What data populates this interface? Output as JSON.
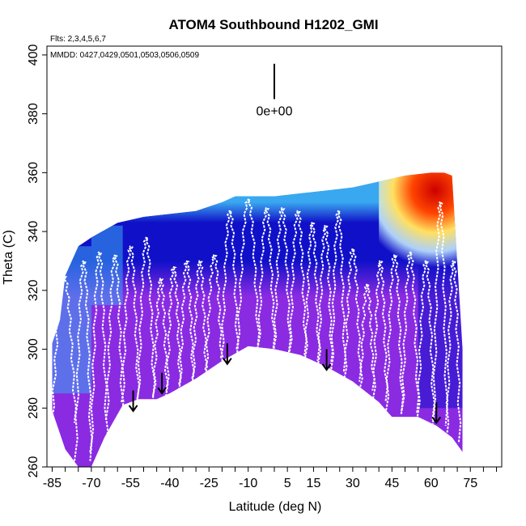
{
  "chart_data": {
    "type": "heatmap",
    "title": "ATOM4 Southbound H1202_GMI",
    "flights_label": "Flts: 2,3,4,5,6,7",
    "dates_label": "MMDD: 0427,0429,0501,0503,0506,0509",
    "xlabel": "Latitude (deg N)",
    "ylabel": "Theta (C)",
    "xlim": [
      -87,
      87
    ],
    "ylim": [
      260,
      403
    ],
    "xticks": [
      -85,
      -70,
      -55,
      -40,
      -25,
      -10,
      5,
      15,
      30,
      45,
      60,
      75
    ],
    "xtick_labels": [
      "-85",
      "-70",
      "-55",
      "-40",
      "-25",
      "-10",
      "5",
      "15",
      "30",
      "45",
      "60",
      "75"
    ],
    "xminor_step": 5,
    "yticks": [
      260,
      280,
      300,
      320,
      340,
      360,
      380,
      400
    ],
    "ytick_labels": [
      "260",
      "280",
      "300",
      "320",
      "340",
      "360",
      "380",
      "400"
    ],
    "scale_bar_label": "0e+00",
    "scale_bar_lat": 0,
    "scale_bar_theta": [
      385,
      397
    ],
    "colors": {
      "low": "#8a2be2",
      "mid_low": "#1010c8",
      "mid": "#3aa8f0",
      "mid_high": "#ffe060",
      "high": "#cc0000",
      "profile": "#ffffff"
    },
    "field": {
      "floor": [
        [
          -85,
          279
        ],
        [
          -80,
          266
        ],
        [
          -75,
          260
        ],
        [
          -70,
          260
        ],
        [
          -65,
          270
        ],
        [
          -58,
          281
        ],
        [
          -52,
          283
        ],
        [
          -45,
          283
        ],
        [
          -40,
          285
        ],
        [
          -30,
          290
        ],
        [
          -20,
          296
        ],
        [
          -10,
          301
        ],
        [
          0,
          300
        ],
        [
          10,
          298
        ],
        [
          20,
          294
        ],
        [
          30,
          289
        ],
        [
          40,
          282
        ],
        [
          45,
          277
        ],
        [
          50,
          277
        ],
        [
          55,
          277
        ],
        [
          62,
          274
        ],
        [
          68,
          270
        ],
        [
          72,
          265
        ]
      ],
      "top": [
        [
          -85,
          302
        ],
        [
          -82,
          310
        ],
        [
          -80,
          325
        ],
        [
          -75,
          335
        ],
        [
          -70,
          338
        ],
        [
          -60,
          343
        ],
        [
          -50,
          345
        ],
        [
          -40,
          346
        ],
        [
          -30,
          347
        ],
        [
          -20,
          350
        ],
        [
          -15,
          352
        ],
        [
          -10,
          352
        ],
        [
          0,
          352
        ],
        [
          10,
          353
        ],
        [
          20,
          354
        ],
        [
          30,
          355
        ],
        [
          40,
          357
        ],
        [
          50,
          359
        ],
        [
          60,
          360
        ],
        [
          65,
          360
        ],
        [
          68,
          359
        ],
        [
          72,
          300
        ]
      ],
      "gradient_stops": [
        {
          "theta": 275,
          "color": "low"
        },
        {
          "theta": 318,
          "color": "low"
        },
        {
          "theta": 330,
          "color": "mid_low"
        },
        {
          "theta": 343,
          "color": "mid_low"
        },
        {
          "theta": 350,
          "color": "mid"
        }
      ],
      "blue_patches": [
        {
          "lat": [
            -87,
            -70
          ],
          "theta": [
            285,
            335
          ],
          "color": "mid"
        },
        {
          "lat": [
            -70,
            -58
          ],
          "theta": [
            315,
            342
          ],
          "color": "mid"
        },
        {
          "lat": [
            55,
            72
          ],
          "theta": [
            280,
            330
          ],
          "color": "mid_low"
        }
      ],
      "hot_region": {
        "lat": [
          40,
          71
        ],
        "theta": [
          328,
          362
        ]
      }
    },
    "profiles": [
      {
        "lat_start": -85,
        "lat_end": -76,
        "theta_min": 275,
        "theta_max": 325
      },
      {
        "lat_start": -76,
        "lat_end": -70,
        "theta_min": 262,
        "theta_max": 330
      },
      {
        "lat_start": -70,
        "lat_end": -64,
        "theta_min": 265,
        "theta_max": 333
      },
      {
        "lat_start": -64,
        "lat_end": -58,
        "theta_min": 276,
        "theta_max": 332
      },
      {
        "lat_start": -58,
        "lat_end": -52,
        "theta_min": 282,
        "theta_max": 335
      },
      {
        "lat_start": -52,
        "lat_end": -46,
        "theta_min": 283,
        "theta_max": 338
      },
      {
        "lat_start": -46,
        "lat_end": -41,
        "theta_min": 284,
        "theta_max": 324
      },
      {
        "lat_start": -41,
        "lat_end": -36,
        "theta_min": 286,
        "theta_max": 328
      },
      {
        "lat_start": -36,
        "lat_end": -31,
        "theta_min": 288,
        "theta_max": 330
      },
      {
        "lat_start": -31,
        "lat_end": -26,
        "theta_min": 290,
        "theta_max": 330
      },
      {
        "lat_start": -26,
        "lat_end": -20,
        "theta_min": 293,
        "theta_max": 332
      },
      {
        "lat_start": -20,
        "lat_end": -14,
        "theta_min": 297,
        "theta_max": 347
      },
      {
        "lat_start": -14,
        "lat_end": -6,
        "theta_min": 300,
        "theta_max": 351
      },
      {
        "lat_start": -6,
        "lat_end": 0,
        "theta_min": 300,
        "theta_max": 348
      },
      {
        "lat_start": 0,
        "lat_end": 6,
        "theta_min": 299,
        "theta_max": 348
      },
      {
        "lat_start": 6,
        "lat_end": 12,
        "theta_min": 298,
        "theta_max": 347
      },
      {
        "lat_start": 12,
        "lat_end": 17,
        "theta_min": 296,
        "theta_max": 343
      },
      {
        "lat_start": 17,
        "lat_end": 22,
        "theta_min": 294,
        "theta_max": 342
      },
      {
        "lat_start": 22,
        "lat_end": 27,
        "theta_min": 292,
        "theta_max": 347
      },
      {
        "lat_start": 27,
        "lat_end": 33,
        "theta_min": 289,
        "theta_max": 334
      },
      {
        "lat_start": 33,
        "lat_end": 38,
        "theta_min": 286,
        "theta_max": 322
      },
      {
        "lat_start": 38,
        "lat_end": 43,
        "theta_min": 282,
        "theta_max": 330
      },
      {
        "lat_start": 43,
        "lat_end": 49,
        "theta_min": 278,
        "theta_max": 332
      },
      {
        "lat_start": 49,
        "lat_end": 55,
        "theta_min": 278,
        "theta_max": 333
      },
      {
        "lat_start": 55,
        "lat_end": 61,
        "theta_min": 276,
        "theta_max": 330
      },
      {
        "lat_start": 61,
        "lat_end": 66,
        "theta_min": 274,
        "theta_max": 350
      },
      {
        "lat_start": 66,
        "lat_end": 71,
        "theta_min": 268,
        "theta_max": 330
      }
    ],
    "arrows": [
      {
        "lat": -54,
        "theta_from": 286,
        "theta_to": 279
      },
      {
        "lat": -43,
        "theta_from": 292,
        "theta_to": 285
      },
      {
        "lat": -18,
        "theta_from": 302,
        "theta_to": 295
      },
      {
        "lat": 20,
        "theta_from": 300,
        "theta_to": 293
      },
      {
        "lat": 62,
        "theta_from": 282,
        "theta_to": 275
      }
    ]
  }
}
